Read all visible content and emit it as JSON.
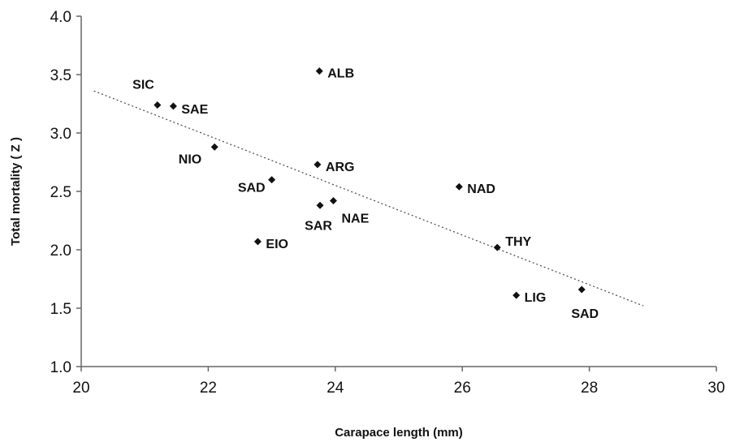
{
  "chart_data": {
    "type": "scatter",
    "xlabel": "Carapace length (mm)",
    "ylabel": "Total mortality ( Z )",
    "xlim": [
      20,
      30
    ],
    "ylim": [
      1.0,
      4.0
    ],
    "x_ticks": [
      "20",
      "22",
      "24",
      "26",
      "28",
      "30"
    ],
    "y_ticks": [
      "1.0",
      "1.5",
      "2.0",
      "2.5",
      "3.0",
      "3.5",
      "4.0"
    ],
    "grid": false,
    "marker": "diamond",
    "points": [
      {
        "label": "SIC",
        "x": 21.2,
        "y": 3.24
      },
      {
        "label": "SAE",
        "x": 21.45,
        "y": 3.23
      },
      {
        "label": "NIO",
        "x": 22.1,
        "y": 2.88
      },
      {
        "label": "ALB",
        "x": 23.75,
        "y": 3.53
      },
      {
        "label": "ARG",
        "x": 23.72,
        "y": 2.73
      },
      {
        "label": "SAD",
        "x": 23.0,
        "y": 2.6
      },
      {
        "label": "SAR",
        "x": 23.76,
        "y": 2.38
      },
      {
        "label": "NAE",
        "x": 23.97,
        "y": 2.42
      },
      {
        "label": "EIO",
        "x": 22.78,
        "y": 2.07
      },
      {
        "label": "NAD",
        "x": 25.95,
        "y": 2.54
      },
      {
        "label": "THY",
        "x": 26.55,
        "y": 2.02
      },
      {
        "label": "LIG",
        "x": 26.85,
        "y": 1.61
      },
      {
        "label": "SAD",
        "x": 27.88,
        "y": 1.66
      }
    ],
    "trendline": {
      "style": "dotted",
      "x": [
        20.2,
        28.85
      ],
      "y": [
        3.36,
        1.52
      ]
    }
  }
}
